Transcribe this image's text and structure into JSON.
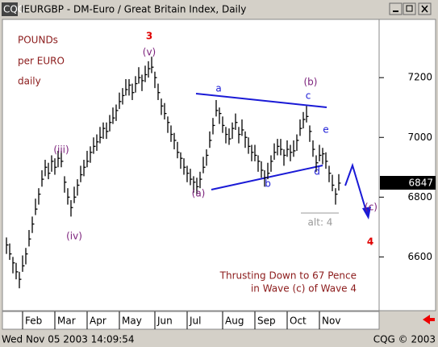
{
  "window": {
    "status": "Wed Nov 05 2003 14:09:54",
    "copyright": "CQG © 2003"
  },
  "chart_data": {
    "type": "ohlc",
    "title": "IEURGBP - DM-Euro / Great Britain Index, Daily",
    "high": [
      6665,
      6645,
      6600,
      6580,
      6550,
      6605,
      6630,
      6690,
      6735,
      6795,
      6830,
      6890,
      6925,
      6915,
      6940,
      6930,
      6955,
      6955,
      6870,
      6830,
      6790,
      6835,
      6860,
      6905,
      6925,
      6955,
      6970,
      7000,
      7010,
      7035,
      7050,
      7050,
      7075,
      7100,
      7110,
      7150,
      7165,
      7195,
      7195,
      7180,
      7205,
      7235,
      7210,
      7240,
      7255,
      7270,
      7220,
      7180,
      7130,
      7115,
      7070,
      7040,
      7015,
      6985,
      6950,
      6930,
      6905,
      6895,
      6870,
      6865,
      6885,
      6935,
      6960,
      7020,
      7065,
      7125,
      7100,
      7070,
      7035,
      7030,
      7050,
      7080,
      7035,
      7060,
      7020,
      7000,
      6975,
      6975,
      6940,
      6920,
      6890,
      6915,
      6940,
      6980,
      6995,
      6995,
      6960,
      6990,
      6975,
      6990,
      7010,
      7060,
      7085,
      7105,
      7040,
      6990,
      6940,
      6975,
      6965,
      6950,
      6905,
      6875,
      6830,
      6877
    ],
    "low": [
      6610,
      6590,
      6545,
      6525,
      6495,
      6550,
      6575,
      6635,
      6680,
      6740,
      6775,
      6835,
      6870,
      6860,
      6885,
      6875,
      6900,
      6900,
      6815,
      6775,
      6735,
      6780,
      6805,
      6850,
      6870,
      6900,
      6915,
      6945,
      6955,
      6980,
      6995,
      6995,
      7020,
      7045,
      7055,
      7095,
      7110,
      7140,
      7140,
      7125,
      7150,
      7180,
      7155,
      7185,
      7200,
      7215,
      7165,
      7125,
      7075,
      7060,
      7015,
      6985,
      6960,
      6930,
      6895,
      6875,
      6850,
      6840,
      6815,
      6810,
      6830,
      6880,
      6905,
      6965,
      7010,
      7070,
      7045,
      7015,
      6980,
      6975,
      6995,
      7025,
      6980,
      7005,
      6965,
      6945,
      6920,
      6920,
      6885,
      6865,
      6835,
      6860,
      6885,
      6925,
      6940,
      6940,
      6905,
      6935,
      6920,
      6935,
      6955,
      7005,
      7030,
      7050,
      6985,
      6935,
      6885,
      6920,
      6910,
      6895,
      6850,
      6820,
      6775,
      6822
    ],
    "close": [
      6640,
      6610,
      6580,
      6550,
      6525,
      6570,
      6610,
      6660,
      6710,
      6760,
      6810,
      6860,
      6900,
      6880,
      6920,
      6900,
      6930,
      6920,
      6850,
      6800,
      6765,
      6800,
      6840,
      6875,
      6900,
      6920,
      6950,
      6970,
      6985,
      7000,
      7030,
      7020,
      7050,
      7065,
      7090,
      7120,
      7140,
      7160,
      7175,
      7150,
      7180,
      7200,
      7190,
      7210,
      7230,
      7235,
      7200,
      7150,
      7105,
      7080,
      7050,
      7010,
      6990,
      6950,
      6930,
      6900,
      6880,
      6860,
      6850,
      6835,
      6860,
      6900,
      6940,
      6990,
      7040,
      7090,
      7080,
      7040,
      7010,
      6995,
      7030,
      7050,
      7010,
      7025,
      7000,
      6970,
      6950,
      6940,
      6920,
      6890,
      6865,
      6880,
      6920,
      6950,
      6970,
      6960,
      6940,
      6960,
      6950,
      6955,
      6990,
      7030,
      7060,
      7070,
      7020,
      6960,
      6915,
      6940,
      6945,
      6920,
      6880,
      6840,
      6810,
      6847
    ],
    "ylim": [
      6420,
      7395
    ],
    "yticks": [
      6600,
      6800,
      7000,
      7200
    ],
    "xlim": [
      -1,
      115.5
    ],
    "xticks": [
      {
        "value": 5,
        "label": "Feb"
      },
      {
        "value": 15,
        "label": "Mar"
      },
      {
        "value": 25,
        "label": "Apr"
      },
      {
        "value": 35,
        "label": "May"
      },
      {
        "value": 46,
        "label": "Jun"
      },
      {
        "value": 56,
        "label": "Jul"
      },
      {
        "value": 67,
        "label": "Aug"
      },
      {
        "value": 77,
        "label": "Sep"
      },
      {
        "value": 87,
        "label": "Oct"
      },
      {
        "value": 97,
        "label": "Nov"
      }
    ],
    "color": "#000000",
    "annotations": [
      "POUNDs",
      "per EURO",
      "daily",
      "3",
      "(v)",
      "(iii)",
      "(iv)",
      "(a)",
      "a",
      "b",
      "(b)",
      "c",
      "d",
      "e",
      "(c)",
      "4",
      "alt: 4",
      "Thrusting Down to 67 Pence",
      "in Wave (c) of Wave 4"
    ]
  }
}
